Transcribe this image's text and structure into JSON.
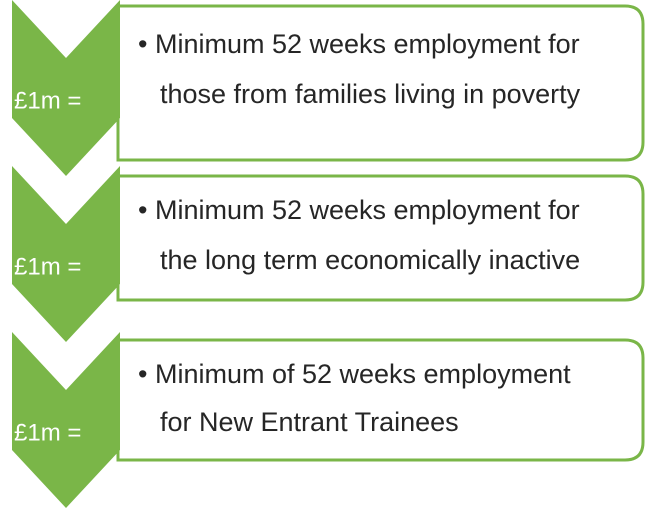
{
  "items": [
    {
      "label": "£1m =",
      "lines": [
        "• Minimum 52 weeks employment for",
        "those from families living in poverty"
      ]
    },
    {
      "label": "£1m =",
      "lines": [
        "• Minimum 52 weeks employment for",
        "the long term economically inactive"
      ]
    },
    {
      "label": "£1m =",
      "lines": [
        "• Minimum of 52 weeks employment",
        "for New Entrant Trainees"
      ]
    }
  ]
}
